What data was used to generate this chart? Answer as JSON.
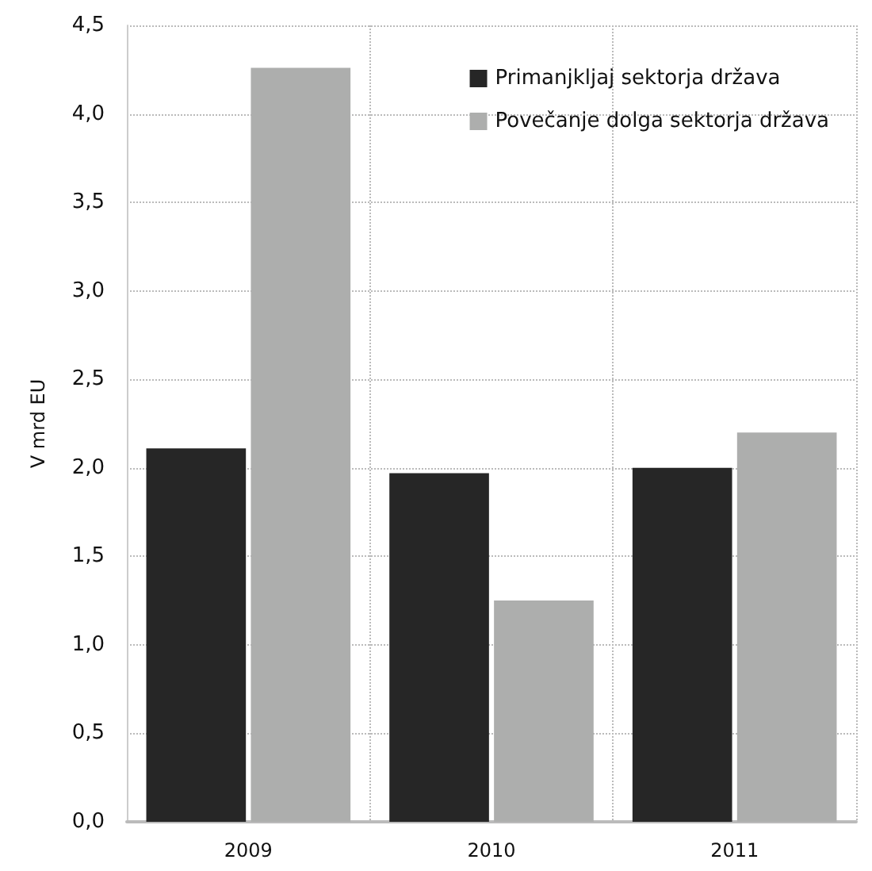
{
  "chart_data": {
    "type": "bar",
    "ylabel": "V mrd EU",
    "categories": [
      "2009",
      "2010",
      "2011"
    ],
    "series": [
      {
        "name": "Primanjkljaj sektorja država",
        "color": "#262626",
        "values": [
          2.11,
          1.97,
          2.0
        ]
      },
      {
        "name": "Povečanje dolga sektorja država",
        "color": "#adaead",
        "values": [
          4.26,
          1.25,
          2.2
        ]
      }
    ],
    "ylim": [
      0,
      4.5
    ],
    "yticks": [
      {
        "value": 0,
        "label": "0,0"
      },
      {
        "value": 0.5,
        "label": "0,5"
      },
      {
        "value": 1,
        "label": "1,0"
      },
      {
        "value": 1.5,
        "label": "1,5"
      },
      {
        "value": 2,
        "label": "2,0"
      },
      {
        "value": 2.5,
        "label": "2,5"
      },
      {
        "value": 3,
        "label": "3,0"
      },
      {
        "value": 3.5,
        "label": "3,5"
      },
      {
        "value": 4,
        "label": "4,0"
      },
      {
        "value": 4.5,
        "label": "4,5"
      }
    ],
    "grid": true,
    "legend": "top right"
  }
}
